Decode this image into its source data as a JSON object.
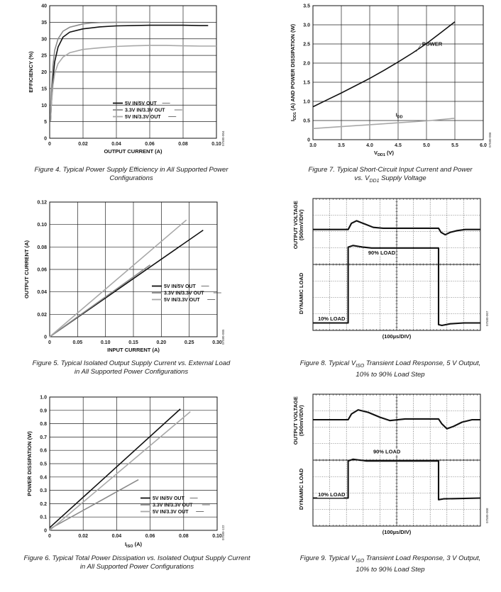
{
  "figures": [
    {
      "id": "fig4",
      "caption_lines": [
        "Figure 4. Typical Power Supply Efficiency in All Supported Power",
        "Configurations"
      ],
      "code": "07580-004"
    },
    {
      "id": "fig5",
      "caption_lines": [
        "Figure 5. Typical Isolated Output Supply Current vs. External Load",
        "in All Supported Power Configurations"
      ],
      "code": "07580-005"
    },
    {
      "id": "fig6",
      "caption_lines": [
        "Figure 6. Typical Total Power Dissipation vs. Isolated Output Supply Current",
        "in All Supported Power Configurations"
      ],
      "code": "07580-122"
    },
    {
      "id": "fig7",
      "caption_lines": [
        "Figure 7. Typical Short-Circuit Input Current and Power",
        "vs. V",
        "DD1",
        " Supply Voltage"
      ],
      "code": "07580-006"
    },
    {
      "id": "fig8",
      "caption_lines": [
        "Figure 8. Typical V",
        "ISO",
        " Transient Load Response, 5 V Output,",
        "10% to 90% Load Step"
      ],
      "code": "07580-007"
    },
    {
      "id": "fig9",
      "caption_lines": [
        "Figure 9. Typical V",
        "ISO",
        " Transient Load Response, 3 V Output,",
        "10% to 90% Load Step"
      ],
      "code": "07580-008"
    }
  ],
  "chart_data": [
    {
      "id": "fig4",
      "type": "line",
      "xlabel": "OUTPUT CURRENT (A)",
      "ylabel": "EFFICIENCY (%)",
      "xlim": [
        0,
        0.1
      ],
      "ylim": [
        0,
        40
      ],
      "xticks": [
        "0",
        "0.02",
        "0.04",
        "0.06",
        "0.08",
        "0.10"
      ],
      "yticks": [
        "0",
        "5",
        "10",
        "15",
        "20",
        "25",
        "30",
        "35",
        "40"
      ],
      "grid": true,
      "legend_position": "bottom-center",
      "series": [
        {
          "name": "5V IN/5V OUT",
          "color": "#111111",
          "x": [
            0.0005,
            0.001,
            0.002,
            0.003,
            0.005,
            0.008,
            0.012,
            0.02,
            0.03,
            0.04,
            0.05,
            0.06,
            0.07,
            0.08,
            0.09,
            0.095
          ],
          "y": [
            5,
            10,
            18,
            23,
            27.5,
            30.5,
            32,
            33,
            33.6,
            33.9,
            34,
            34.1,
            34.1,
            34.1,
            34,
            34
          ]
        },
        {
          "name": "3.3V IN/3.3V OUT",
          "color": "#8a8a8a",
          "x": [
            0.0005,
            0.001,
            0.002,
            0.003,
            0.005,
            0.008,
            0.012,
            0.02,
            0.025,
            0.03,
            0.04,
            0.05,
            0.06
          ],
          "y": [
            7,
            14,
            22,
            26.5,
            30,
            32.3,
            33.5,
            34.5,
            34.8,
            34.9,
            35,
            35,
            35
          ]
        },
        {
          "name": "5V IN/3.3V OUT",
          "color": "#a8a8a8",
          "x": [
            0.0005,
            0.001,
            0.002,
            0.003,
            0.005,
            0.008,
            0.012,
            0.02,
            0.03,
            0.04,
            0.05,
            0.06,
            0.07,
            0.08,
            0.09,
            0.1
          ],
          "y": [
            5,
            10,
            16,
            19.5,
            22.5,
            24.5,
            25.8,
            26.8,
            27.3,
            27.7,
            27.9,
            28,
            28,
            27.9,
            27.8,
            27.8
          ]
        }
      ]
    },
    {
      "id": "fig5",
      "type": "line",
      "xlabel": "INPUT CURRENT (A)",
      "ylabel": "OUTPUT CURRENT (A)",
      "xlim": [
        0,
        0.3
      ],
      "ylim": [
        0,
        0.12
      ],
      "xticks": [
        "0",
        "0.05",
        "0.10",
        "0.15",
        "0.20",
        "0.25",
        "0.30"
      ],
      "yticks": [
        "0",
        "0.02",
        "0.04",
        "0.06",
        "0.08",
        "0.10",
        "0.12"
      ],
      "grid": true,
      "legend_position": "bottom-right",
      "series": [
        {
          "name": "5V IN/5V OUT",
          "color": "#111111",
          "x": [
            0,
            0.275
          ],
          "y": [
            0,
            0.095
          ]
        },
        {
          "name": "3.3V IN/3.3V OUT",
          "color": "#8a8a8a",
          "x": [
            0,
            0.18
          ],
          "y": [
            0,
            0.064
          ]
        },
        {
          "name": "5V IN/3.3V OUT",
          "color": "#a8a8a8",
          "x": [
            0,
            0.245
          ],
          "y": [
            0,
            0.104
          ]
        }
      ]
    },
    {
      "id": "fig6",
      "type": "line",
      "xlabel": "I",
      "xlabel_sub": "ISO",
      "xlabel_unit": " (A)",
      "ylabel": "POWER DISSIPATION (W)",
      "xlim": [
        0,
        0.1
      ],
      "ylim": [
        0,
        1.0
      ],
      "xticks": [
        "0",
        "0.02",
        "0.04",
        "0.06",
        "0.08",
        "0.10"
      ],
      "yticks": [
        "0",
        "0.1",
        "0.2",
        "0.3",
        "0.4",
        "0.5",
        "0.6",
        "0.7",
        "0.8",
        "0.9",
        "1.0"
      ],
      "grid": true,
      "legend_position": "bottom-right",
      "series": [
        {
          "name": "5V IN/5V OUT",
          "color": "#111111",
          "x": [
            0,
            0.078
          ],
          "y": [
            0.02,
            0.91
          ]
        },
        {
          "name": "3.3V IN/3.3V OUT",
          "color": "#8a8a8a",
          "x": [
            0,
            0.053
          ],
          "y": [
            0.01,
            0.38
          ]
        },
        {
          "name": "5V IN/3.3V OUT",
          "color": "#a8a8a8",
          "x": [
            0,
            0.084
          ],
          "y": [
            0.0,
            0.89
          ]
        }
      ]
    },
    {
      "id": "fig7",
      "type": "line",
      "xlabel": "V",
      "xlabel_sub": "DD1",
      "xlabel_unit": " (V)",
      "ylabel": "I",
      "ylabel_sub": "DD1",
      "ylabel_rest": " (A) AND POWER DISSIPATION (W)",
      "xlim": [
        3.0,
        6.0
      ],
      "ylim": [
        0,
        3.5
      ],
      "xticks": [
        "3.0",
        "3.5",
        "4.0",
        "4.5",
        "5.0",
        "5.5",
        "6.0"
      ],
      "yticks": [
        "0",
        "0.5",
        "1.0",
        "1.5",
        "2.0",
        "2.5",
        "3.0",
        "3.5"
      ],
      "grid": true,
      "series": [
        {
          "name": "POWER",
          "color": "#111111",
          "x": [
            3.0,
            3.25,
            3.5,
            3.75,
            4.0,
            4.25,
            4.5,
            4.75,
            5.0,
            5.25,
            5.5
          ],
          "y": [
            0.86,
            1.04,
            1.22,
            1.41,
            1.6,
            1.81,
            2.03,
            2.26,
            2.51,
            2.79,
            3.08
          ]
        },
        {
          "name": "I",
          "name_sub": "DD",
          "color": "#a8a8a8",
          "x": [
            3.0,
            3.5,
            4.0,
            4.5,
            5.0,
            5.5
          ],
          "y": [
            0.29,
            0.34,
            0.39,
            0.44,
            0.49,
            0.56
          ]
        }
      ]
    },
    {
      "id": "fig8",
      "type": "line",
      "xlabel": "(100µs/DIV)",
      "ylabel_top": "OUTPUT VOLTAGE",
      "ylabel_top2": "(500mV/DIV)",
      "ylabel_bottom": "DYNAMIC LOAD",
      "grid_divisions": [
        10,
        8
      ],
      "annotations": [
        "90% LOAD",
        "10% LOAD"
      ],
      "series": [
        {
          "name": "voltage",
          "color": "#111111",
          "x": [
            0,
            2.1,
            2.3,
            2.6,
            3.1,
            3.6,
            4.2,
            7.5,
            7.65,
            7.9,
            8.2,
            8.6,
            9.1,
            10
          ],
          "y": [
            6.12,
            6.12,
            6.5,
            6.65,
            6.45,
            6.25,
            6.2,
            6.2,
            5.95,
            5.8,
            5.95,
            6.05,
            6.12,
            6.12
          ]
        },
        {
          "name": "load",
          "color": "#111111",
          "x": [
            0,
            2.1,
            2.1,
            2.4,
            3.0,
            3.5,
            7.5,
            7.5,
            7.7,
            8.2,
            9.0,
            10
          ],
          "y": [
            0.45,
            0.45,
            5.05,
            5.15,
            5.05,
            5.0,
            5.0,
            0.35,
            0.3,
            0.4,
            0.45,
            0.45
          ]
        }
      ]
    },
    {
      "id": "fig9",
      "type": "line",
      "xlabel": "(100µs/DIV)",
      "ylabel_top": "OUTPUT VOLTAGE",
      "ylabel_top2": "(500mV/DIV)",
      "ylabel_bottom": "DYNAMIC LOAD",
      "grid_divisions": [
        10,
        8
      ],
      "annotations": [
        "90% LOAD",
        "10% LOAD"
      ],
      "series": [
        {
          "name": "voltage",
          "color": "#111111",
          "x": [
            0,
            2.1,
            2.3,
            2.7,
            3.3,
            4.0,
            4.6,
            5.5,
            7.5,
            7.7,
            8.0,
            8.4,
            8.9,
            9.5,
            10
          ],
          "y": [
            6.45,
            6.45,
            6.8,
            7.05,
            6.9,
            6.6,
            6.4,
            6.5,
            6.5,
            6.2,
            5.9,
            6.05,
            6.3,
            6.45,
            6.45
          ]
        },
        {
          "name": "load",
          "color": "#111111",
          "x": [
            0,
            2.1,
            2.1,
            2.4,
            3.2,
            7.5,
            7.5,
            7.8,
            10
          ],
          "y": [
            1.7,
            1.7,
            3.95,
            4.05,
            3.95,
            3.95,
            1.6,
            1.65,
            1.7
          ]
        }
      ]
    }
  ]
}
